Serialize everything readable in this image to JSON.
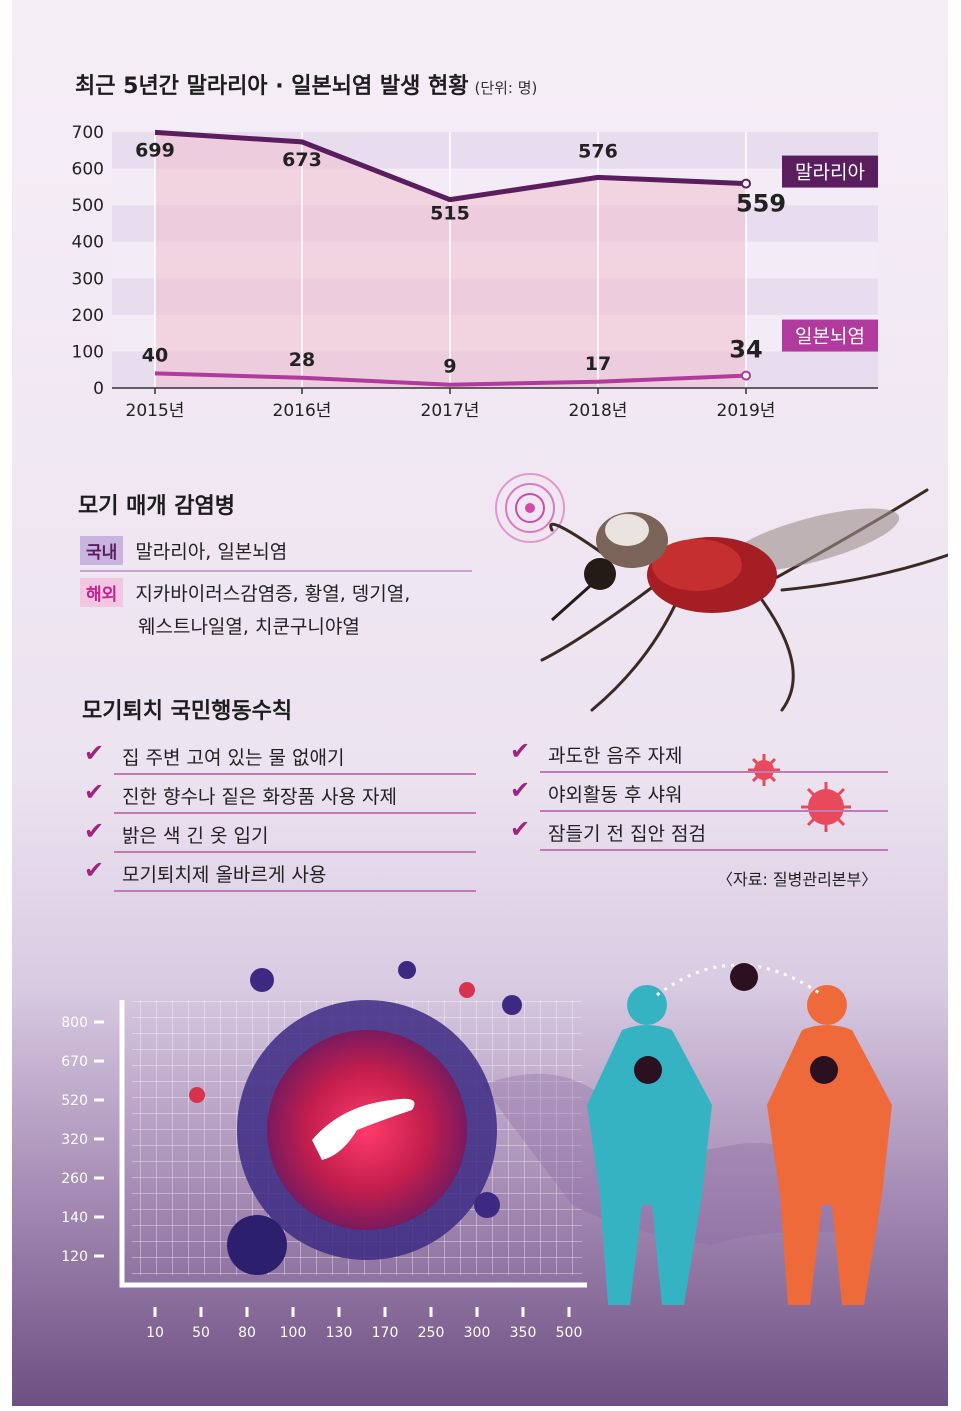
{
  "chart_title": "최근 5년간 말라리아 · 일본뇌염 발생 현황",
  "chart_unit": "(단위: 명)",
  "chart_data": {
    "type": "line",
    "title": "최근 5년간 말라리아 · 일본뇌염 발생 현황",
    "categories": [
      "2015년",
      "2016년",
      "2017년",
      "2018년",
      "2019년"
    ],
    "ylim": [
      0,
      700
    ],
    "yticks": [
      "0",
      "100",
      "200",
      "300",
      "400",
      "500",
      "600",
      "700"
    ],
    "series": [
      {
        "name": "말라리아",
        "values": [
          699,
          673,
          515,
          576,
          559
        ],
        "labels": [
          "699",
          "673",
          "515",
          "576",
          "559"
        ],
        "color": "#5a1e5e"
      },
      {
        "name": "일본뇌염",
        "values": [
          40,
          28,
          9,
          17,
          34
        ],
        "labels": [
          "40",
          "28",
          "9",
          "17",
          "34"
        ],
        "color": "#b03a9e"
      }
    ]
  },
  "disease_section": {
    "title": "모기 매개 감염병",
    "domestic_tag": "국내",
    "domestic_text": "말라리아, 일본뇌염",
    "overseas_tag": "해외",
    "overseas_line1": "지카바이러스감염증, 황열, 뎅기열,",
    "overseas_line2": "웨스트나일열, 치쿤구니야열"
  },
  "rules_section": {
    "title": "모기퇴치 국민행동수칙",
    "left": [
      "집 주변 고여 있는 물 없애기",
      "진한 향수나 짙은 화장품 사용 자제",
      "밝은 색 긴 옷 입기",
      "모기퇴치제 올바르게 사용"
    ],
    "right": [
      "과도한 음주 자제",
      "야외활동 후 샤워",
      "잠들기 전 집안 점검"
    ],
    "check_mark": "✔"
  },
  "source": "〈자료: 질병관리본부〉",
  "decor_chart": {
    "y_labels": [
      "800",
      "670",
      "520",
      "320",
      "260",
      "140",
      "120"
    ],
    "x_labels": [
      "10",
      "50",
      "80",
      "100",
      "130",
      "170",
      "250",
      "300",
      "350",
      "500"
    ]
  },
  "colors": {
    "malaria": "#5a1e5e",
    "encephalitis": "#b03a9e",
    "accent": "#a0237f"
  }
}
